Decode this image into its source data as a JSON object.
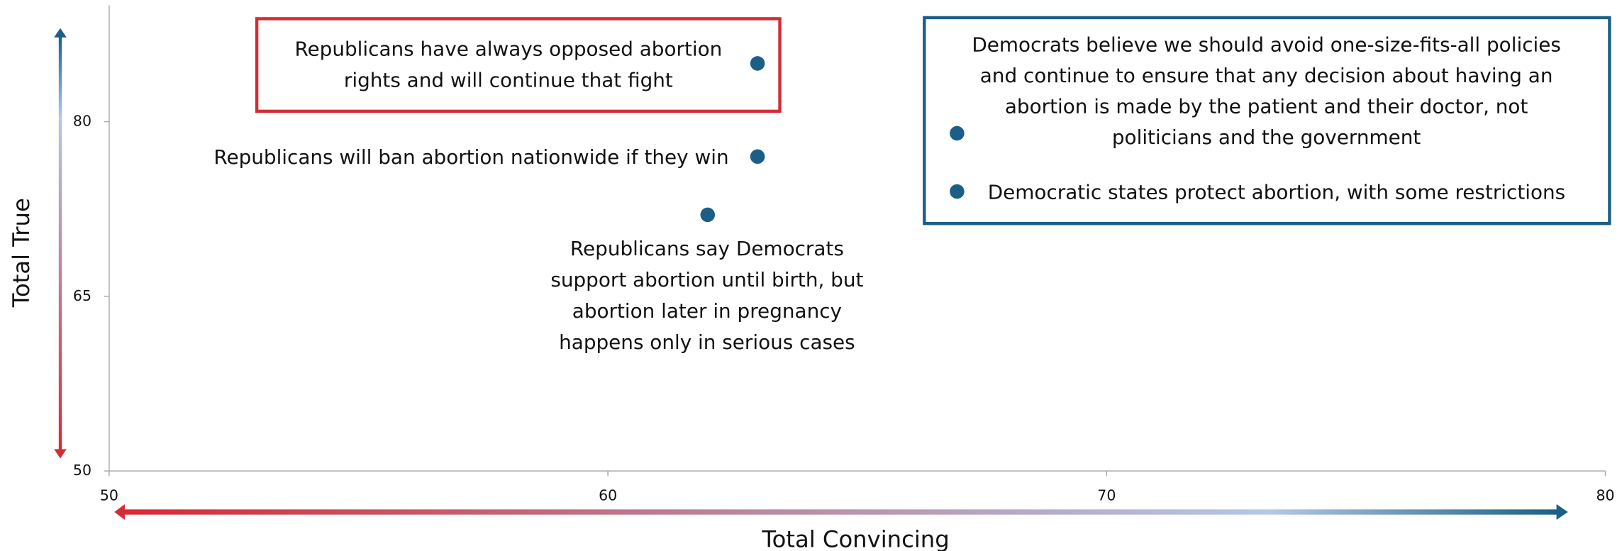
{
  "chart_data": {
    "type": "scatter",
    "xlabel": "Total Convincing",
    "ylabel": "Total True",
    "x": [
      63,
      63,
      62,
      67,
      67
    ],
    "y": [
      85,
      77,
      72,
      79,
      74
    ],
    "point_labels": [
      [
        "Republicans have always opposed abortion",
        "rights and will continue that fight"
      ],
      [
        "Republicans will ban abortion nationwide if they win"
      ],
      [
        "Republicans say Democrats",
        "support abortion until birth, but",
        "abortion later in pregnancy",
        "happens only in serious cases"
      ],
      [
        "Democrats believe we should avoid one-size-fits-all policies",
        "and continue to ensure that any decision about having an",
        "abortion is made by the patient and their doctor, not",
        "politicians and the government"
      ],
      [
        "Democratic states protect abortion, with some restrictions"
      ]
    ],
    "color": "#1b5f87",
    "xlim": [
      50,
      80
    ],
    "xticks": [
      50,
      60,
      70,
      80
    ],
    "ylim": [
      50,
      90
    ],
    "yticks": [
      50,
      65,
      80
    ]
  }
}
